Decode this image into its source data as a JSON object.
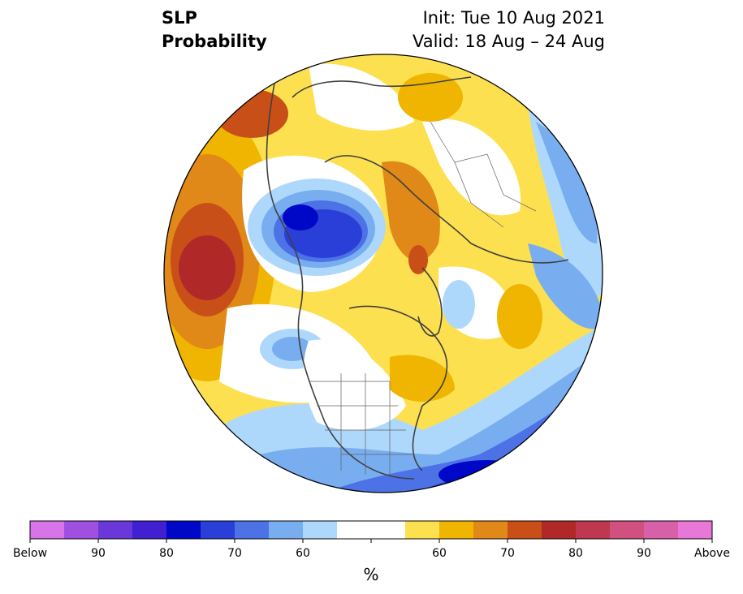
{
  "title": {
    "variable": "SLP",
    "product": "Probability",
    "init": "Init: Tue 10 Aug 2021",
    "valid": "Valid: 18 Aug – 24 Aug"
  },
  "map": {
    "projection": "north-polar-stereographic",
    "features": [
      "coastlines",
      "country-borders",
      "us-state-borders"
    ]
  },
  "colorbar": {
    "unit": "%",
    "labels": [
      "Below",
      "90",
      "80",
      "70",
      "60",
      "60",
      "70",
      "80",
      "90",
      "Above"
    ],
    "below_colors": [
      "#d674e8",
      "#a050e0",
      "#6a38d8",
      "#4020d0",
      "#0008c8",
      "#2a3ed8",
      "#4c72e6",
      "#78aef0",
      "#aed8fb"
    ],
    "neutral_color": "#ffffff",
    "above_colors": [
      "#fde050",
      "#f0b500",
      "#e08818",
      "#c85018",
      "#b02828",
      "#c03850",
      "#d05080",
      "#d860a8",
      "#e878d8"
    ]
  }
}
